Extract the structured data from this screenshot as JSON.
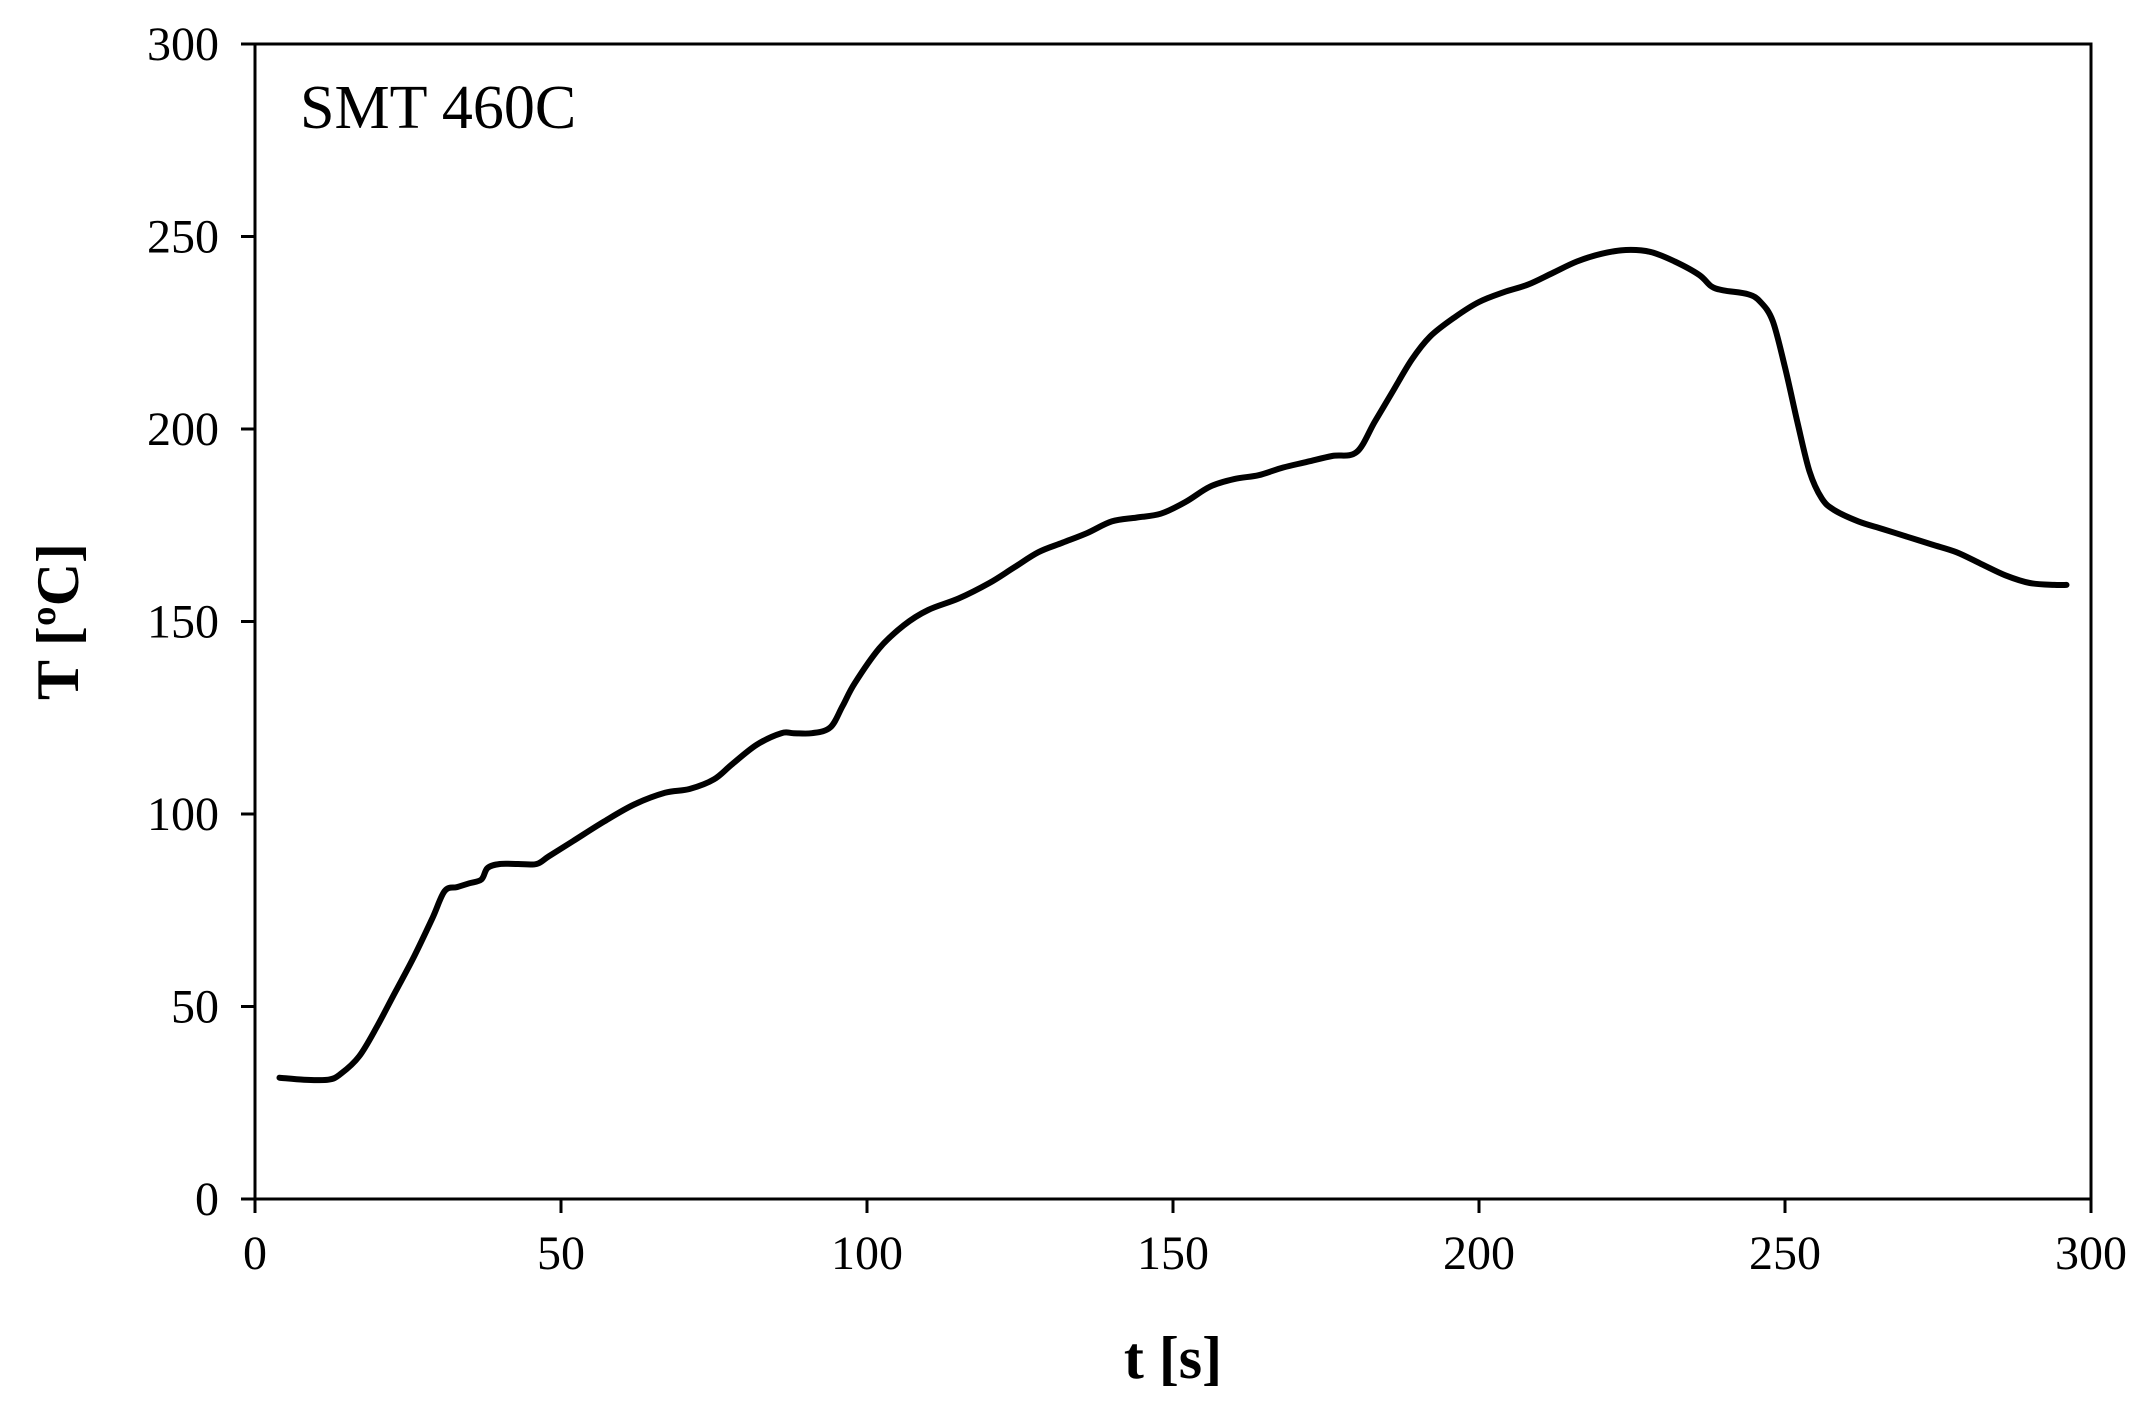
{
  "chart_data": {
    "type": "line",
    "title": "",
    "annotation": "SMT 460C",
    "xlabel": "t [s]",
    "ylabel": "T [ºC]",
    "xlim": [
      0,
      300
    ],
    "ylim": [
      0,
      300
    ],
    "xticks": [
      0,
      50,
      100,
      150,
      200,
      250,
      300
    ],
    "yticks": [
      0,
      50,
      100,
      150,
      200,
      250,
      300
    ],
    "grid": false,
    "series": [
      {
        "color": "#000000",
        "x": [
          4,
          8,
          12,
          14,
          17,
          20,
          23,
          26,
          29,
          31,
          33,
          35,
          37,
          38,
          40,
          43,
          46,
          48,
          52,
          57,
          62,
          67,
          71,
          75,
          78,
          82,
          86,
          88,
          91,
          94,
          96,
          98,
          102,
          106,
          110,
          115,
          120,
          124,
          128,
          132,
          136,
          140,
          144,
          148,
          152,
          156,
          160,
          164,
          168,
          172,
          176,
          180,
          183,
          186,
          189,
          192,
          196,
          200,
          204,
          208,
          212,
          216,
          220,
          224,
          228,
          232,
          236,
          238,
          240,
          244,
          246,
          248,
          250,
          252,
          254,
          256,
          258,
          262,
          266,
          270,
          274,
          278,
          282,
          286,
          290,
          294,
          296
        ],
        "y": [
          31.5,
          31,
          31,
          32.5,
          37,
          45,
          54,
          63,
          73,
          80,
          81,
          82,
          83,
          86,
          87,
          87,
          87,
          89,
          93,
          98,
          102.5,
          105.5,
          106.5,
          109,
          113,
          118,
          121,
          121,
          121,
          122.5,
          128,
          134,
          143,
          149,
          153,
          156,
          160,
          164,
          168,
          170.5,
          173,
          176,
          177,
          178,
          181,
          185,
          187,
          188,
          190,
          191.5,
          193,
          194,
          202,
          210,
          218,
          224,
          229,
          233,
          235.5,
          237.5,
          240.5,
          243.5,
          245.5,
          246.5,
          246,
          243.5,
          240,
          237,
          236,
          235,
          233,
          228,
          216,
          202,
          189,
          182,
          179,
          176,
          174,
          172,
          170,
          168,
          165,
          162,
          160,
          159.5,
          159.5
        ]
      }
    ]
  }
}
